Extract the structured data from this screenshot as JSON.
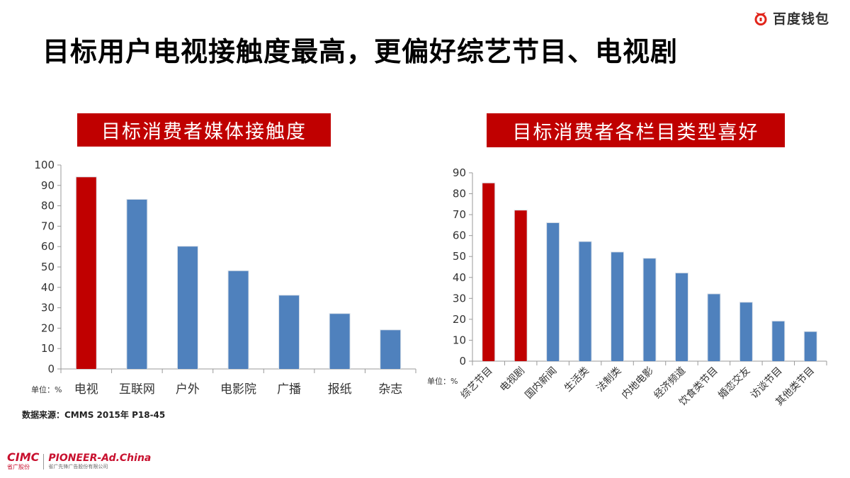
{
  "slide": {
    "title": "目标用户电视接触度最高，更偏好综艺节目、电视剧",
    "brand": {
      "name": "百度钱包",
      "icon": "baidu-wallet-logo",
      "color": "#e1251b"
    },
    "footer": {
      "logo1": "CIMC",
      "logo1_sub": "省广股份",
      "logo2": "PIONEER-Ad.China",
      "logo2_sub": "省广先锋广告股份有限公司"
    },
    "source": "数据来源：CMMS 2015年  P18-45",
    "colors": {
      "highlight": "#c00000",
      "bar": "#4f81bd",
      "banner": "#c00000"
    }
  },
  "left_chart": {
    "banner": "目标消费者媒体接触度",
    "unit": "单位：%"
  },
  "right_chart": {
    "banner": "目标消费者各栏目类型喜好",
    "unit": "单位：%"
  },
  "chart_data": [
    {
      "type": "bar",
      "title": "目标消费者媒体接触度",
      "xlabel": "",
      "ylabel": "单位：%",
      "categories": [
        "电视",
        "互联网",
        "户外",
        "电影院",
        "广播",
        "报纸",
        "杂志"
      ],
      "values": [
        94,
        83,
        60,
        48,
        36,
        27,
        19
      ],
      "highlight": [
        true,
        false,
        false,
        false,
        false,
        false,
        false
      ],
      "ylim": [
        0,
        100
      ],
      "yticks": [
        0,
        10,
        20,
        30,
        40,
        50,
        60,
        70,
        80,
        90,
        100
      ],
      "grid": false,
      "legend": "none"
    },
    {
      "type": "bar",
      "title": "目标消费者各栏目类型喜好",
      "xlabel": "",
      "ylabel": "单位：%",
      "categories": [
        "综艺节目",
        "电视剧",
        "国内新闻",
        "生活类",
        "法制类",
        "内地电影",
        "经济频道",
        "饮食类节目",
        "婚恋交友",
        "访谈节目",
        "其他类节目"
      ],
      "values": [
        85,
        72,
        66,
        57,
        52,
        49,
        42,
        32,
        28,
        19,
        14
      ],
      "highlight": [
        true,
        true,
        false,
        false,
        false,
        false,
        false,
        false,
        false,
        false,
        false
      ],
      "ylim": [
        0,
        90
      ],
      "yticks": [
        0,
        10,
        20,
        30,
        40,
        50,
        60,
        70,
        80,
        90
      ],
      "grid": false,
      "legend": "none",
      "xtick_rotation": -45
    }
  ]
}
